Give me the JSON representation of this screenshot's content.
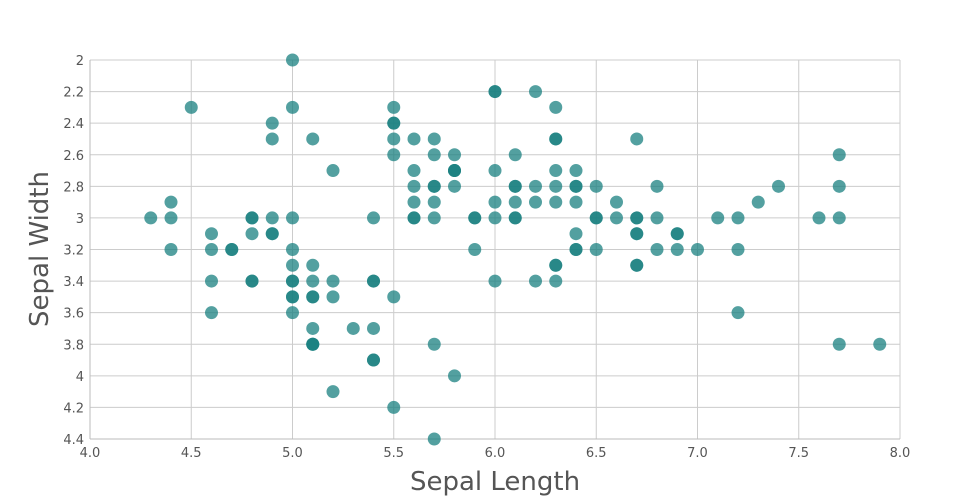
{
  "chart_data": {
    "type": "scatter",
    "title": "",
    "xlabel": "Sepal Length",
    "ylabel": "Sepal Width",
    "xlim": [
      4.0,
      8.0
    ],
    "ylim": [
      2.0,
      4.4
    ],
    "y_inverted": true,
    "grid": true,
    "x_ticks": [
      "4.0",
      "4.5",
      "5.0",
      "5.5",
      "6.0",
      "6.5",
      "7.0",
      "7.5",
      "8.0"
    ],
    "y_ticks": [
      "2",
      "2.2",
      "2.4",
      "2.6",
      "2.8",
      "3",
      "3.2",
      "3.4",
      "3.6",
      "3.8",
      "4",
      "4.2",
      "4.4"
    ],
    "point_color": "#1a8080",
    "point_opacity": 0.75,
    "points": [
      [
        4.3,
        3.0
      ],
      [
        4.4,
        2.9
      ],
      [
        4.4,
        3.0
      ],
      [
        4.4,
        3.2
      ],
      [
        4.5,
        2.3
      ],
      [
        4.6,
        3.1
      ],
      [
        4.6,
        3.2
      ],
      [
        4.6,
        3.4
      ],
      [
        4.6,
        3.6
      ],
      [
        4.7,
        3.2
      ],
      [
        4.7,
        3.2
      ],
      [
        4.8,
        3.0
      ],
      [
        4.8,
        3.0
      ],
      [
        4.8,
        3.1
      ],
      [
        4.8,
        3.4
      ],
      [
        4.8,
        3.4
      ],
      [
        4.9,
        2.4
      ],
      [
        4.9,
        2.5
      ],
      [
        4.9,
        3.0
      ],
      [
        4.9,
        3.1
      ],
      [
        4.9,
        3.1
      ],
      [
        5.0,
        2.0
      ],
      [
        5.0,
        2.3
      ],
      [
        5.0,
        3.0
      ],
      [
        5.0,
        3.2
      ],
      [
        5.0,
        3.3
      ],
      [
        5.0,
        3.4
      ],
      [
        5.0,
        3.4
      ],
      [
        5.0,
        3.5
      ],
      [
        5.0,
        3.5
      ],
      [
        5.0,
        3.6
      ],
      [
        5.1,
        2.5
      ],
      [
        5.1,
        3.3
      ],
      [
        5.1,
        3.4
      ],
      [
        5.1,
        3.5
      ],
      [
        5.1,
        3.5
      ],
      [
        5.1,
        3.7
      ],
      [
        5.1,
        3.8
      ],
      [
        5.1,
        3.8
      ],
      [
        5.1,
        3.8
      ],
      [
        5.2,
        2.7
      ],
      [
        5.2,
        3.4
      ],
      [
        5.2,
        3.5
      ],
      [
        5.2,
        4.1
      ],
      [
        5.3,
        3.7
      ],
      [
        5.4,
        3.0
      ],
      [
        5.4,
        3.4
      ],
      [
        5.4,
        3.4
      ],
      [
        5.4,
        3.7
      ],
      [
        5.4,
        3.9
      ],
      [
        5.4,
        3.9
      ],
      [
        5.5,
        2.3
      ],
      [
        5.5,
        2.4
      ],
      [
        5.5,
        2.4
      ],
      [
        5.5,
        2.5
      ],
      [
        5.5,
        2.6
      ],
      [
        5.5,
        3.5
      ],
      [
        5.5,
        4.2
      ],
      [
        5.6,
        2.5
      ],
      [
        5.6,
        2.7
      ],
      [
        5.6,
        2.8
      ],
      [
        5.6,
        2.9
      ],
      [
        5.6,
        3.0
      ],
      [
        5.6,
        3.0
      ],
      [
        5.7,
        2.5
      ],
      [
        5.7,
        2.6
      ],
      [
        5.7,
        2.8
      ],
      [
        5.7,
        2.8
      ],
      [
        5.7,
        2.9
      ],
      [
        5.7,
        3.0
      ],
      [
        5.7,
        3.8
      ],
      [
        5.7,
        4.4
      ],
      [
        5.8,
        2.6
      ],
      [
        5.8,
        2.7
      ],
      [
        5.8,
        2.7
      ],
      [
        5.8,
        2.7
      ],
      [
        5.8,
        2.8
      ],
      [
        5.8,
        4.0
      ],
      [
        5.9,
        3.0
      ],
      [
        5.9,
        3.0
      ],
      [
        5.9,
        3.2
      ],
      [
        6.0,
        2.2
      ],
      [
        6.0,
        2.2
      ],
      [
        6.0,
        2.7
      ],
      [
        6.0,
        2.9
      ],
      [
        6.0,
        3.0
      ],
      [
        6.0,
        3.4
      ],
      [
        6.1,
        2.6
      ],
      [
        6.1,
        2.8
      ],
      [
        6.1,
        2.8
      ],
      [
        6.1,
        2.9
      ],
      [
        6.1,
        3.0
      ],
      [
        6.1,
        3.0
      ],
      [
        6.2,
        2.2
      ],
      [
        6.2,
        2.8
      ],
      [
        6.2,
        2.9
      ],
      [
        6.2,
        3.4
      ],
      [
        6.3,
        2.3
      ],
      [
        6.3,
        2.5
      ],
      [
        6.3,
        2.5
      ],
      [
        6.3,
        2.7
      ],
      [
        6.3,
        2.8
      ],
      [
        6.3,
        2.9
      ],
      [
        6.3,
        3.3
      ],
      [
        6.3,
        3.3
      ],
      [
        6.3,
        3.4
      ],
      [
        6.4,
        2.7
      ],
      [
        6.4,
        2.8
      ],
      [
        6.4,
        2.8
      ],
      [
        6.4,
        2.9
      ],
      [
        6.4,
        3.1
      ],
      [
        6.4,
        3.2
      ],
      [
        6.4,
        3.2
      ],
      [
        6.5,
        2.8
      ],
      [
        6.5,
        3.0
      ],
      [
        6.5,
        3.0
      ],
      [
        6.5,
        3.2
      ],
      [
        6.6,
        2.9
      ],
      [
        6.6,
        3.0
      ],
      [
        6.7,
        2.5
      ],
      [
        6.7,
        3.0
      ],
      [
        6.7,
        3.0
      ],
      [
        6.7,
        3.1
      ],
      [
        6.7,
        3.1
      ],
      [
        6.7,
        3.3
      ],
      [
        6.7,
        3.3
      ],
      [
        6.8,
        2.8
      ],
      [
        6.8,
        3.0
      ],
      [
        6.8,
        3.2
      ],
      [
        6.9,
        3.1
      ],
      [
        6.9,
        3.1
      ],
      [
        6.9,
        3.2
      ],
      [
        7.0,
        3.2
      ],
      [
        7.1,
        3.0
      ],
      [
        7.2,
        3.0
      ],
      [
        7.2,
        3.2
      ],
      [
        7.2,
        3.6
      ],
      [
        7.3,
        2.9
      ],
      [
        7.4,
        2.8
      ],
      [
        7.6,
        3.0
      ],
      [
        7.7,
        2.6
      ],
      [
        7.7,
        2.8
      ],
      [
        7.7,
        3.0
      ],
      [
        7.7,
        3.8
      ],
      [
        7.9,
        3.8
      ]
    ]
  }
}
